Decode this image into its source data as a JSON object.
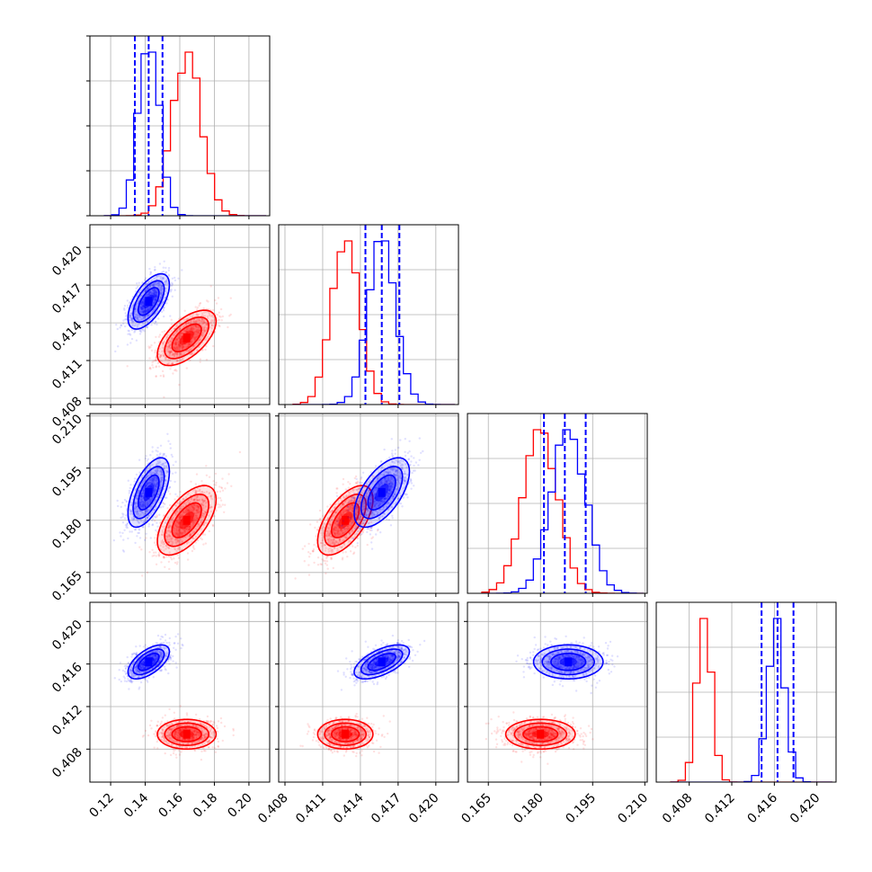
{
  "chart_data": {
    "type": "scatter",
    "subtype": "corner",
    "grid": true,
    "series": [
      {
        "color": "#ff0000",
        "role": "red"
      },
      {
        "color": "#0000ff",
        "role": "blue"
      }
    ],
    "parameters": [
      {
        "ticks": [
          "0.12",
          "0.14",
          "0.16",
          "0.18",
          "0.20"
        ],
        "tick_values": [
          0.12,
          0.14,
          0.16,
          0.18,
          0.2
        ],
        "range": [
          0.108,
          0.212
        ]
      },
      {
        "ticks": [
          "0.408",
          "0.411",
          "0.414",
          "0.417",
          "0.420"
        ],
        "tick_values": [
          0.408,
          0.411,
          0.414,
          0.417,
          0.42
        ],
        "range": [
          0.4075,
          0.4218
        ]
      },
      {
        "ticks": [
          "0.165",
          "0.180",
          "0.195",
          "0.210"
        ],
        "tick_values": [
          0.165,
          0.18,
          0.195,
          0.21
        ],
        "range": [
          0.159,
          0.2107
        ]
      },
      {
        "ticks": [
          "0.408",
          "0.412",
          "0.416",
          "0.420"
        ],
        "tick_values": [
          0.408,
          0.412,
          0.416,
          0.42
        ],
        "range": [
          0.4049,
          0.4218
        ]
      }
    ],
    "posteriors": {
      "red": {
        "mean": [
          0.164,
          0.4128,
          0.18,
          0.4094
        ],
        "sd": [
          0.0085,
          0.0011,
          0.005,
          0.0007
        ],
        "corr": {
          "0-1": 0.6,
          "0-2": 0.6,
          "1-2": 0.6
        }
      },
      "blue": {
        "mean": [
          0.142,
          0.4157,
          0.188,
          0.4162
        ],
        "sd": [
          0.006,
          0.0011,
          0.005,
          0.0008
        ],
        "corr": {
          "0-1": 0.6,
          "0-2": 0.6,
          "1-2": 0.6,
          "0-3": 0.6,
          "1-3": 0.6
        }
      }
    },
    "quantile_lines": {
      "color": "#0000ff",
      "values": [
        [
          0.134,
          0.142,
          0.15
        ],
        [
          0.4144,
          0.4157,
          0.4171
        ],
        [
          0.181,
          0.187,
          0.193
        ],
        [
          0.4148,
          0.4163,
          0.4178
        ]
      ]
    }
  }
}
